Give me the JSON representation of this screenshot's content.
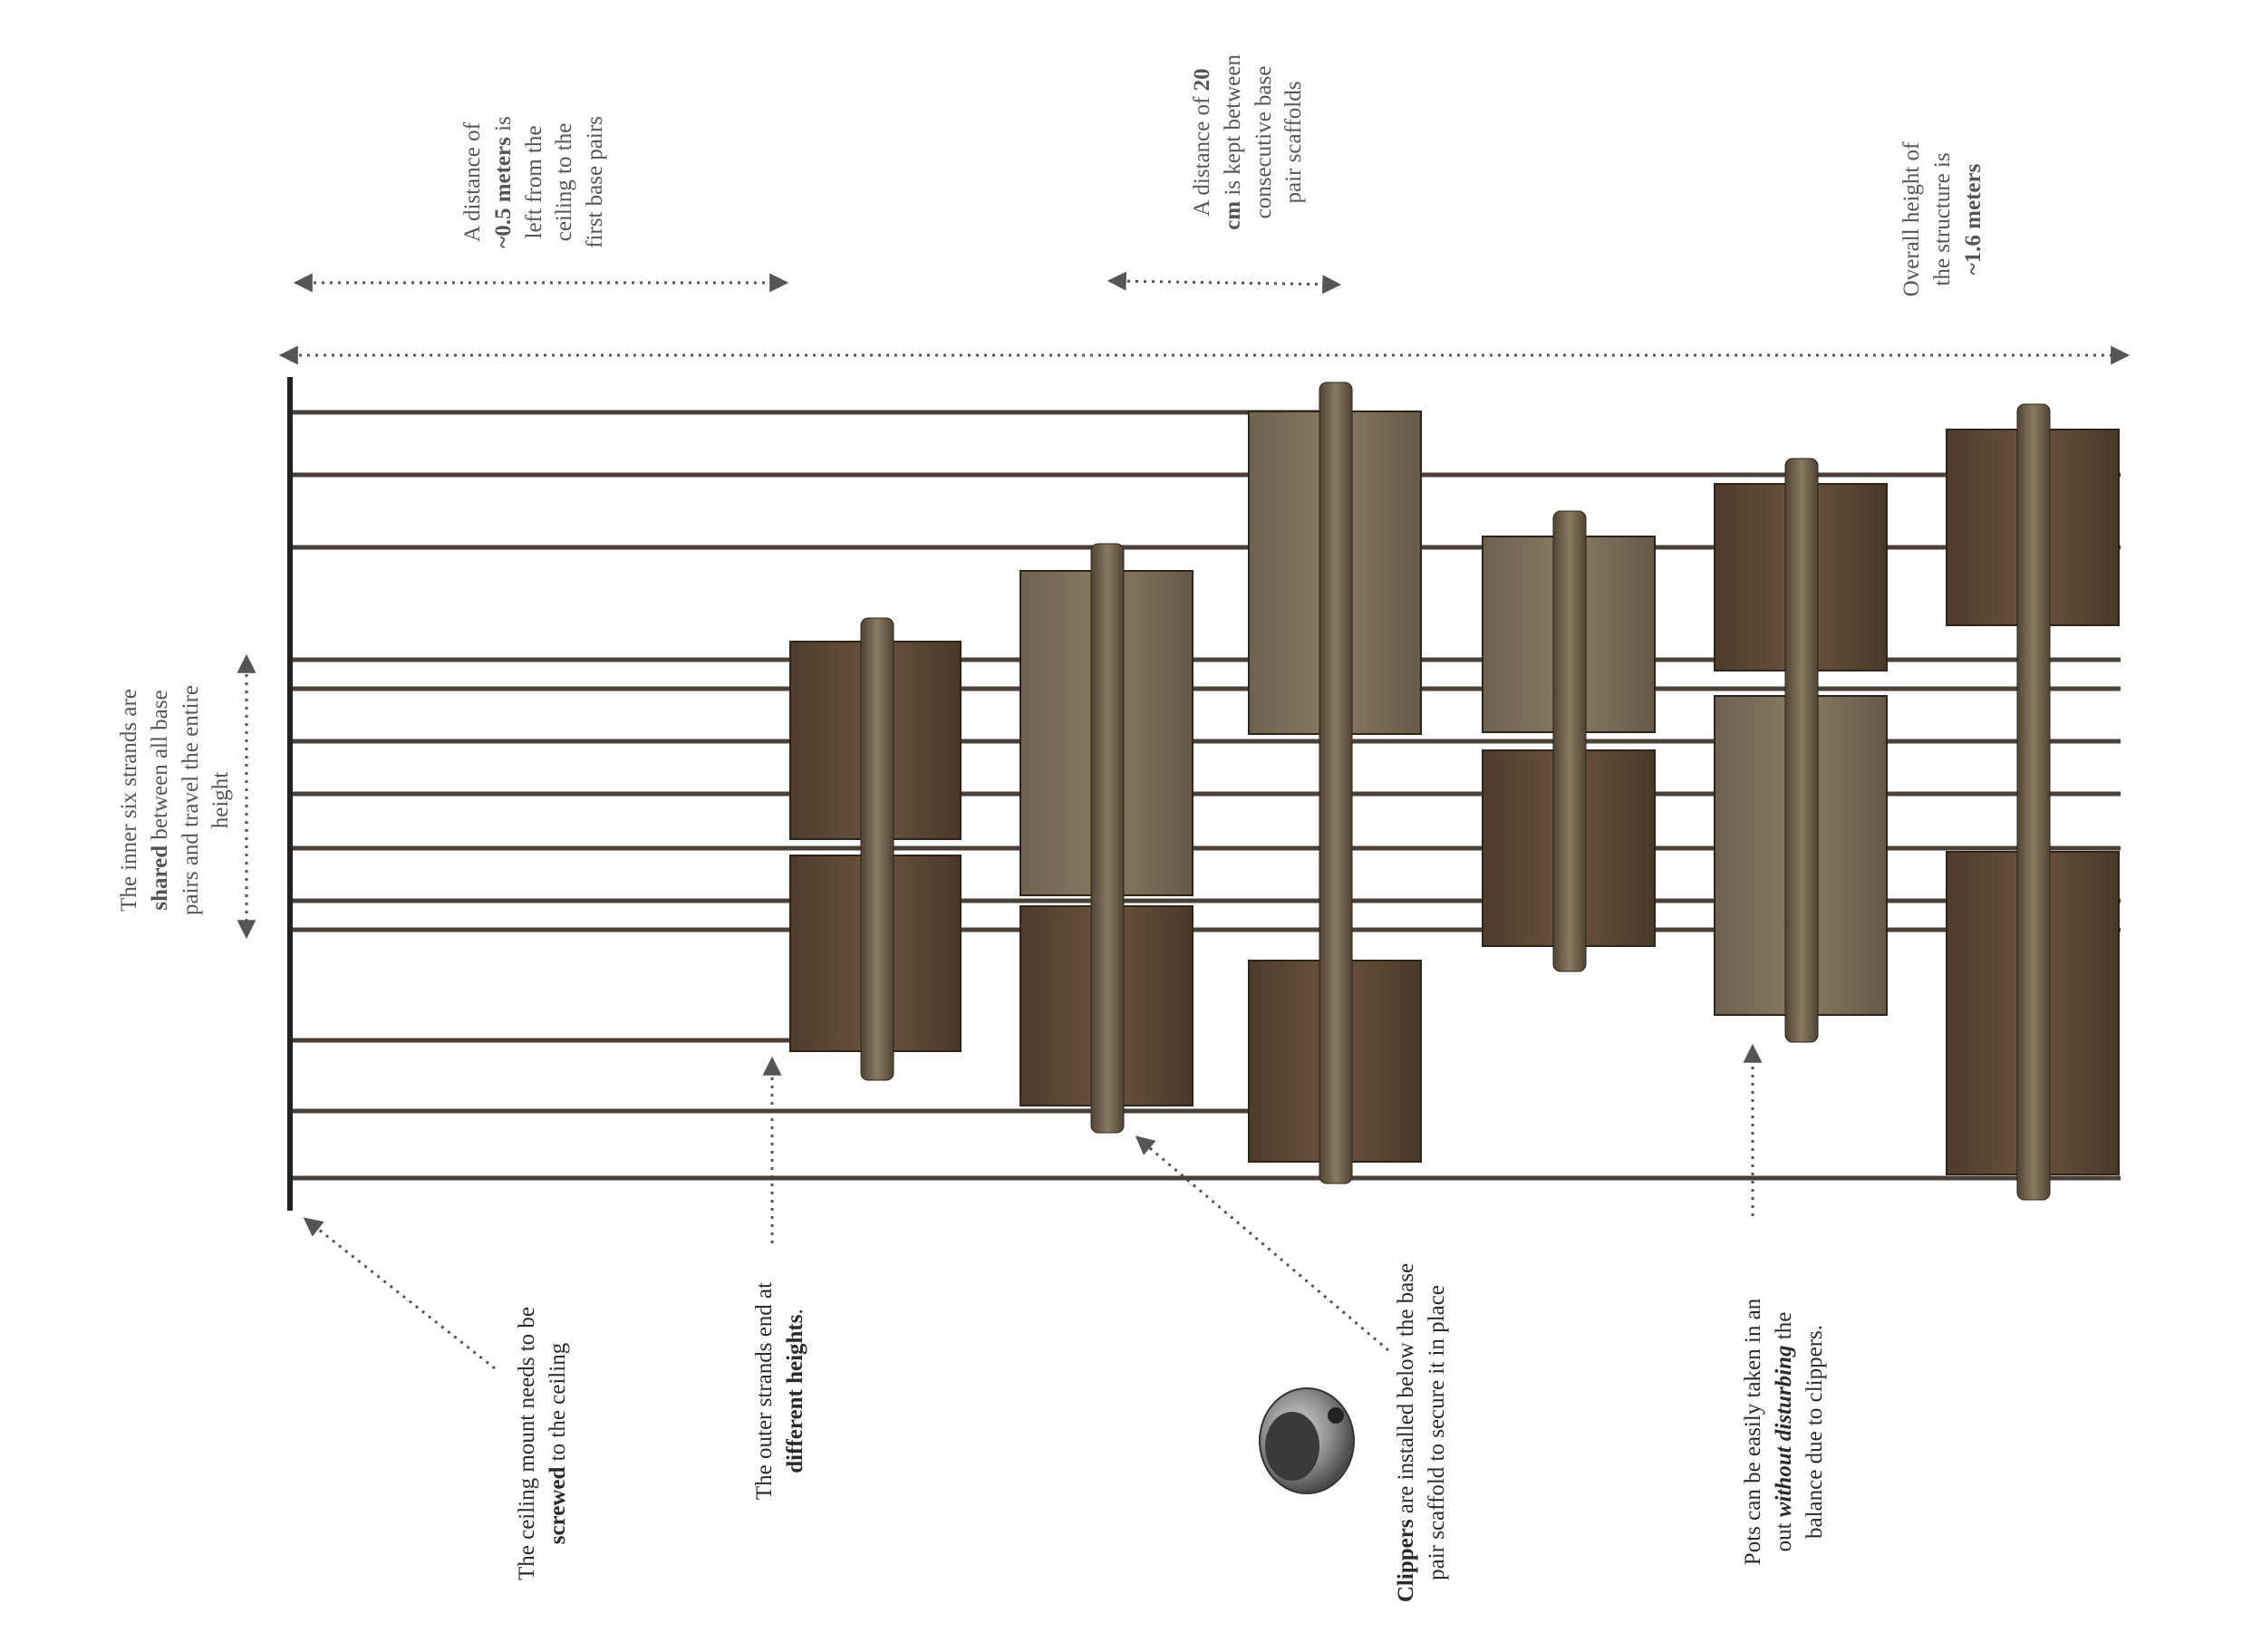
{
  "annotations": {
    "ceiling_gap": {
      "line1": "A distance of",
      "line2_bold": "~0.5 meters",
      "line2_rest": " is",
      "line3": "left from the",
      "line4": "ceiling to the",
      "line5": "first base pairs"
    },
    "scaffold_gap": {
      "line1_pre": "A distance of ",
      "line1_bold": "20",
      "line2_bold": "cm",
      "line2_rest": " is kept between",
      "line3": "consecutive base",
      "line4": "pair scaffolds"
    },
    "overall_height": {
      "line1": "Overall height of",
      "line2": "the structure is",
      "line3_bold": "~1.6 meters"
    },
    "inner_strands": {
      "line1": "The inner six strands are",
      "line2_bold": "shared",
      "line2_rest": " between all base",
      "line3": "pairs and travel the entire",
      "line4": "height"
    },
    "ceiling_mount": {
      "line1": "The ceiling mount needs to be",
      "line2_bold": "screwed",
      "line2_rest": " to the ceiling"
    },
    "outer_strands": {
      "line1": "The outer strands end at",
      "line2_bold": "different heights",
      "line2_rest": "."
    },
    "clippers": {
      "line1_bold": "Clippers",
      "line1_rest": " are installed below the base",
      "line2": "pair scaffold to secure it in place"
    },
    "pots": {
      "line1": "Pots can be easily taken in an",
      "line2_pre": "out ",
      "line2_bold_italic": "without disturbing",
      "line2_rest": " the",
      "line3": "balance due to clippers."
    }
  },
  "icons": {
    "clipper": "clipper-icon"
  },
  "colors": {
    "strand": "#4a4038",
    "pot_dark": "#5a4634",
    "pot_light": "#7a6a55",
    "pipe": "#6b5c48",
    "arrow": "#555555"
  }
}
